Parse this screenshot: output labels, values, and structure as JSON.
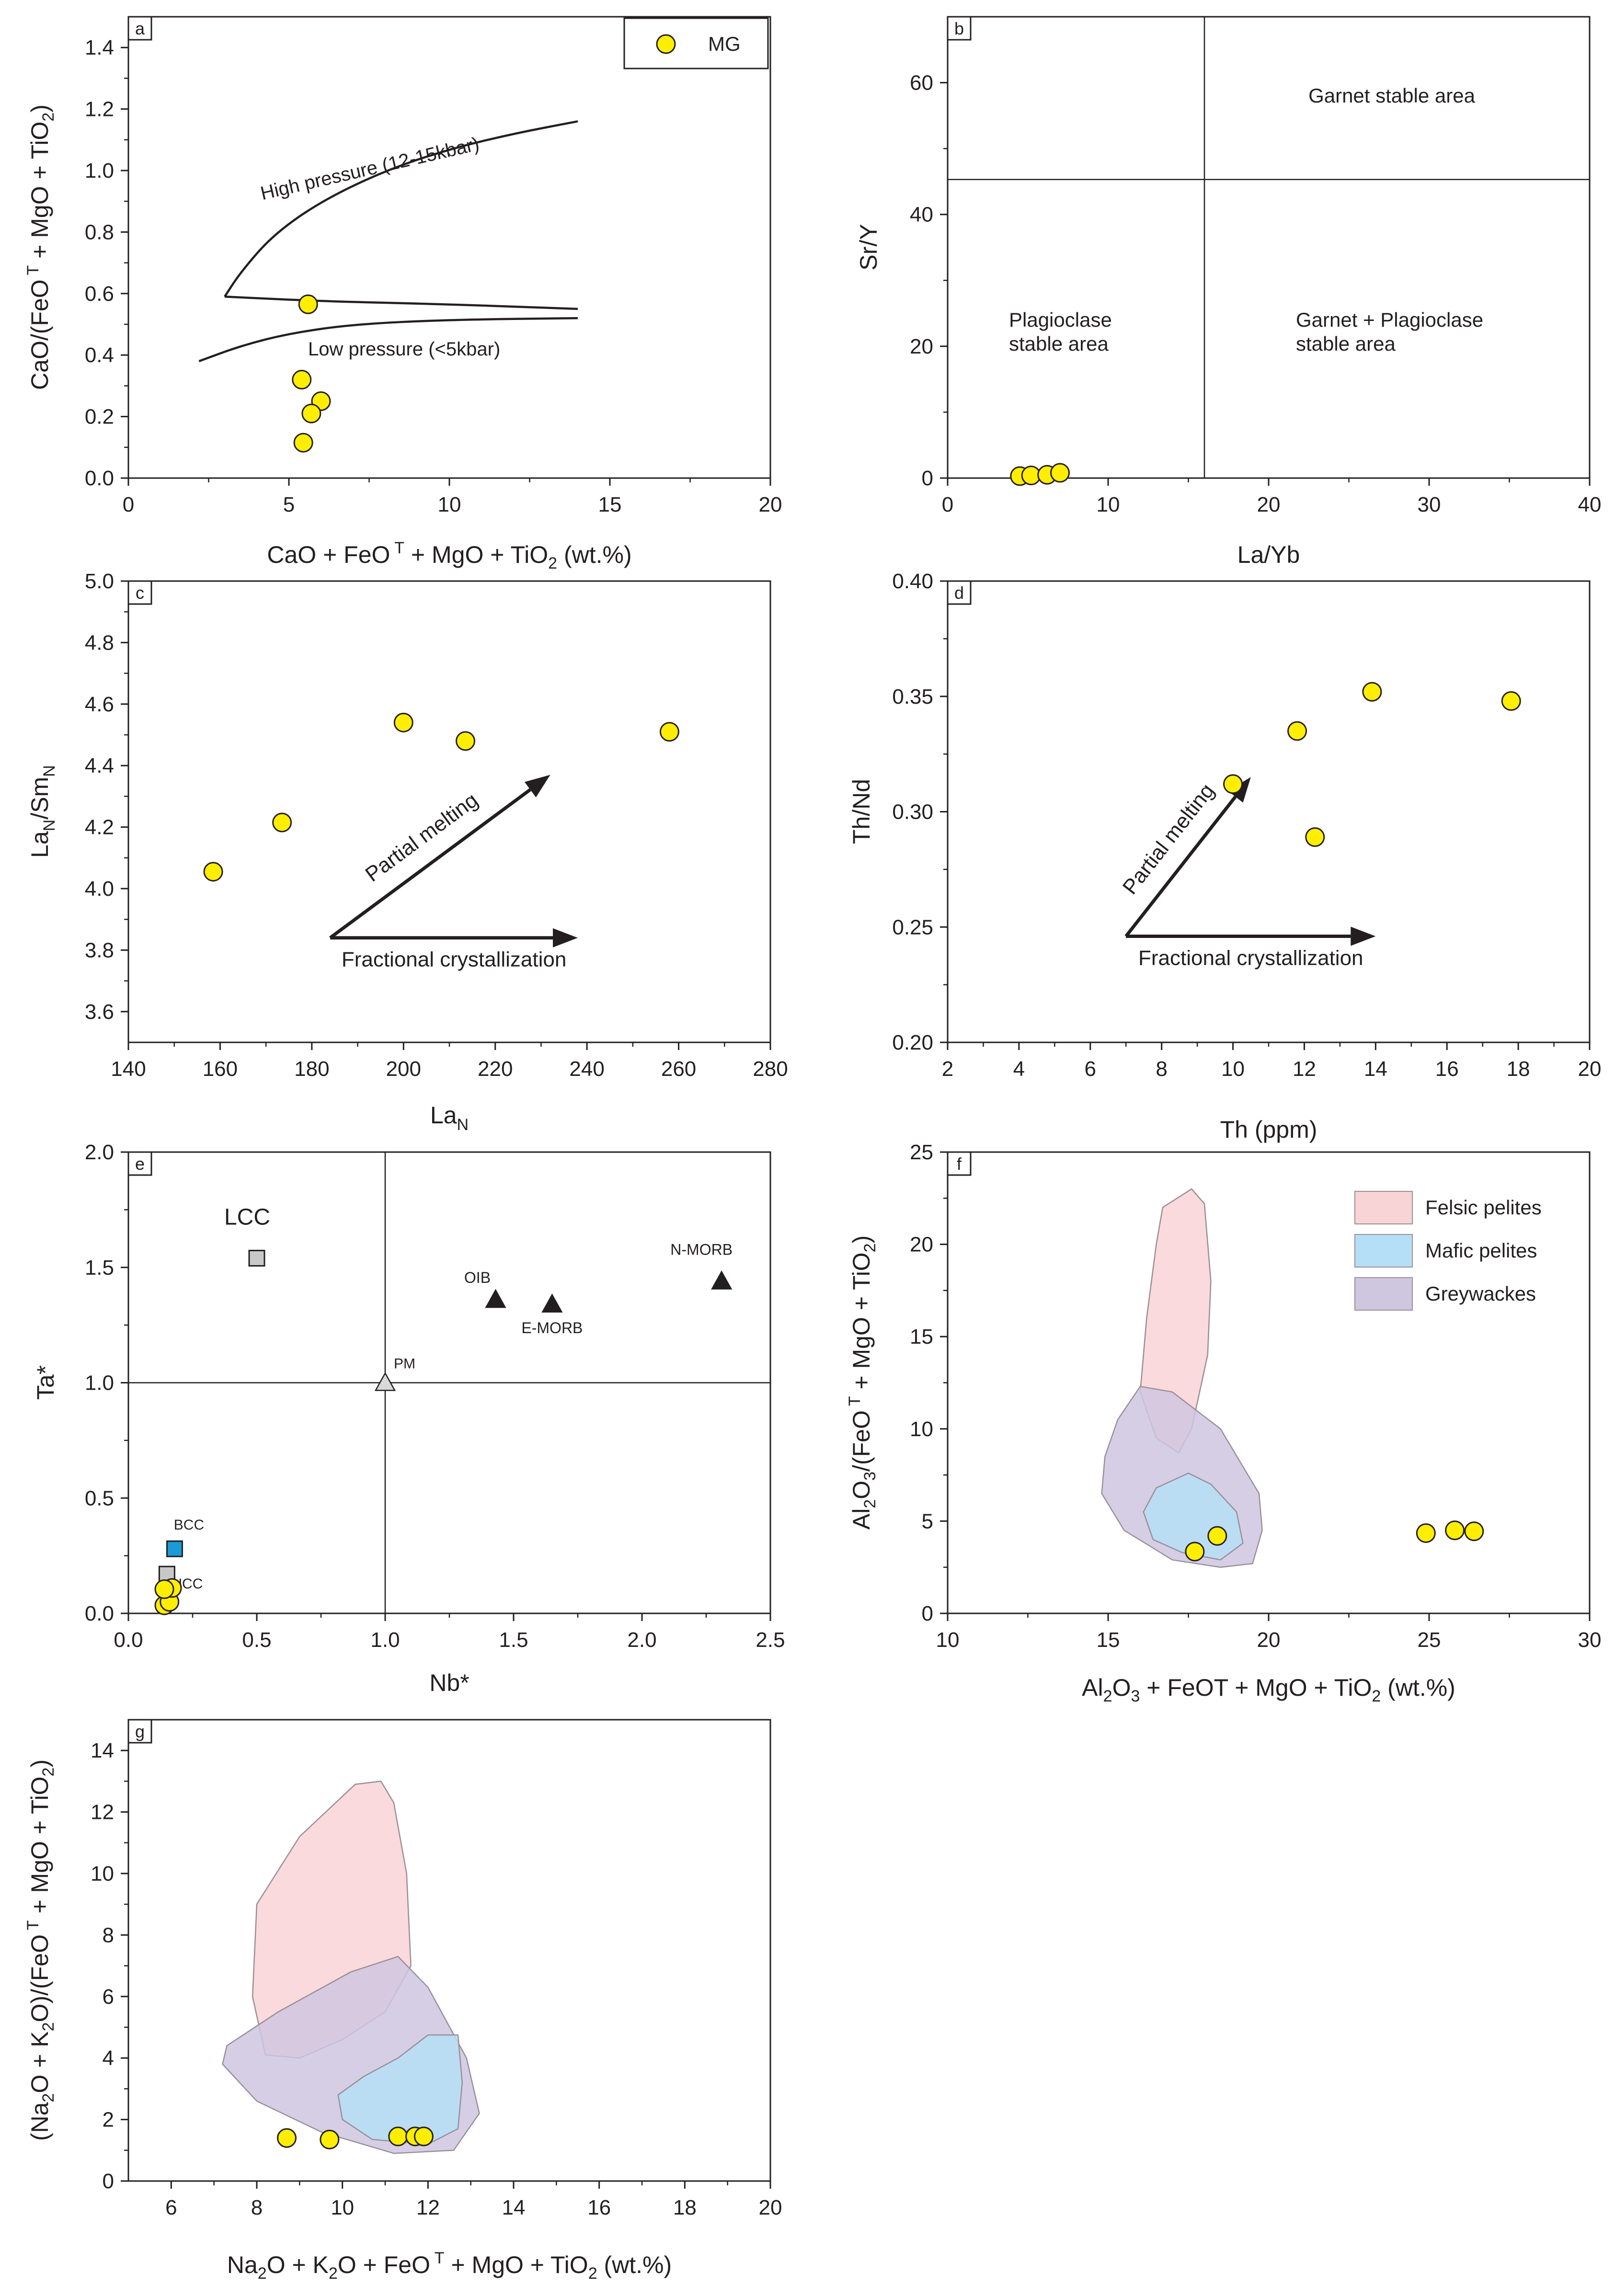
{
  "colors": {
    "sample_fill": "#ffee00",
    "felsic_fill": "#f9d4d6",
    "mafic_fill": "#b5dff6",
    "greywacke_fill": "#cfc6e0",
    "reference_dark": "#231f20",
    "bcc_fill": "#1a9ad6",
    "lcc_fill": "#c8c8c8"
  },
  "chart_data": [
    {
      "panel": "a",
      "type": "scatter",
      "xlabel": "CaO + FeO T + MgO + TiO2 (wt.%)",
      "ylabel": "CaO/(FeO T + MgO + TiO2)",
      "xlim": [
        0,
        20
      ],
      "ylim": [
        0,
        1.5
      ],
      "x_ticks": [
        0,
        5,
        10,
        15,
        20
      ],
      "y_ticks": [
        0,
        0.2,
        0.4,
        0.6,
        0.8,
        1.0,
        1.2,
        1.4
      ],
      "legend": "top-right",
      "legend_labels": [
        "MG"
      ],
      "series": [
        {
          "name": "MG",
          "points": [
            [
              5.6,
              0.565
            ],
            [
              5.4,
              0.32
            ],
            [
              6.0,
              0.25
            ],
            [
              5.7,
              0.21
            ],
            [
              5.45,
              0.115
            ]
          ]
        }
      ],
      "curves": [
        {
          "name": "high-pressure-boundary",
          "points": [
            [
              3.0,
              0.59
            ],
            [
              3.5,
              0.67
            ],
            [
              4.5,
              0.79
            ],
            [
              6,
              0.9
            ],
            [
              8,
              1.0
            ],
            [
              10,
              1.07
            ],
            [
              12,
              1.12
            ],
            [
              14,
              1.16
            ]
          ]
        },
        {
          "name": "upper-middle-boundary",
          "points": [
            [
              3.0,
              0.59
            ],
            [
              6,
              0.575
            ],
            [
              10,
              0.565
            ],
            [
              14,
              0.55
            ]
          ]
        },
        {
          "name": "low-pressure-boundary",
          "points": [
            [
              2.2,
              0.38
            ],
            [
              3.5,
              0.43
            ],
            [
              5,
              0.47
            ],
            [
              7,
              0.5
            ],
            [
              10,
              0.515
            ],
            [
              14,
              0.52
            ]
          ]
        }
      ],
      "annotations": [
        "High pressure (12-15kbar)",
        "Low  pressure (<5kbar)"
      ]
    },
    {
      "panel": "b",
      "type": "scatter",
      "xlabel": "La/Yb",
      "ylabel": "Sr/Y",
      "xlim": [
        0,
        40
      ],
      "ylim": [
        0,
        70
      ],
      "x_ticks": [
        0,
        10,
        20,
        30,
        40
      ],
      "y_ticks": [
        0,
        20,
        40,
        60
      ],
      "series": [
        {
          "name": "MG",
          "points": [
            [
              4.5,
              0.3
            ],
            [
              5.2,
              0.4
            ],
            [
              6.2,
              0.5
            ],
            [
              7.0,
              0.8
            ]
          ]
        }
      ],
      "divider_x": 16,
      "divider_y": 45.3,
      "annotations": [
        "Garnet stable area",
        "Plagioclase",
        "stable area",
        "Garnet + Plagioclase",
        "stable area"
      ]
    },
    {
      "panel": "c",
      "type": "scatter",
      "xlabel": "La",
      "xlabel_sub": "N",
      "ylabel": "La",
      "ylabel_sub1": "N",
      "ylabel_mid": "/Sm",
      "ylabel_sub2": "N",
      "xlim": [
        140,
        280
      ],
      "ylim": [
        3.5,
        5.0
      ],
      "x_ticks": [
        140,
        160,
        180,
        200,
        220,
        240,
        260,
        280
      ],
      "y_ticks": [
        3.6,
        3.8,
        4.0,
        4.2,
        4.4,
        4.6,
        4.8,
        5.0
      ],
      "series": [
        {
          "name": "MG",
          "points": [
            [
              158.5,
              4.055
            ],
            [
              173.5,
              4.215
            ],
            [
              200,
              4.54
            ],
            [
              213.5,
              4.48
            ],
            [
              258,
              4.51
            ]
          ]
        }
      ],
      "arrows": [
        {
          "label": "Partial melting",
          "from": [
            184,
            3.84
          ],
          "to": [
            232,
            4.37
          ]
        },
        {
          "label": "Fractional crystallization",
          "from": [
            184,
            3.84
          ],
          "to": [
            238,
            3.84
          ]
        }
      ]
    },
    {
      "panel": "d",
      "type": "scatter",
      "xlabel": "Th (ppm)",
      "ylabel": "Th/Nd",
      "xlim": [
        2,
        20
      ],
      "ylim": [
        0.2,
        0.4
      ],
      "x_ticks": [
        2,
        4,
        6,
        8,
        10,
        12,
        14,
        16,
        18,
        20
      ],
      "y_ticks": [
        0.2,
        0.25,
        0.3,
        0.35,
        0.4
      ],
      "series": [
        {
          "name": "MG",
          "points": [
            [
              10,
              0.312
            ],
            [
              11.8,
              0.335
            ],
            [
              12.3,
              0.289
            ],
            [
              13.9,
              0.352
            ],
            [
              17.8,
              0.348
            ]
          ]
        }
      ],
      "arrows": [
        {
          "label": "Partial melting",
          "from": [
            7,
            0.246
          ],
          "to": [
            10.5,
            0.315
          ]
        },
        {
          "label": "Fractional crystallization",
          "from": [
            7,
            0.246
          ],
          "to": [
            14,
            0.246
          ]
        }
      ]
    },
    {
      "panel": "e",
      "type": "scatter",
      "xlabel": "Nb*",
      "ylabel": "Ta*",
      "xlim": [
        0,
        2.5
      ],
      "ylim": [
        0,
        2.0
      ],
      "x_ticks": [
        0.0,
        0.5,
        1.0,
        1.5,
        2.0,
        2.5
      ],
      "y_ticks": [
        0.0,
        0.5,
        1.0,
        1.5,
        2.0
      ],
      "series": [
        {
          "name": "MG",
          "points": [
            [
              0.14,
              0.035
            ],
            [
              0.16,
              0.05
            ],
            [
              0.17,
              0.11
            ],
            [
              0.14,
              0.105
            ]
          ]
        }
      ],
      "reference": [
        {
          "name": "LCC",
          "x": 0.5,
          "y": 1.54,
          "marker": "square"
        },
        {
          "name": "BCC",
          "x": 0.18,
          "y": 0.28,
          "marker": "square"
        },
        {
          "name": "UCC",
          "x": 0.15,
          "y": 0.17,
          "marker": "square"
        },
        {
          "name": "PM",
          "x": 1.0,
          "y": 1.0,
          "marker": "triangle-open"
        },
        {
          "name": "OIB",
          "x": 1.43,
          "y": 1.36,
          "marker": "triangle"
        },
        {
          "name": "E-MORB",
          "x": 1.65,
          "y": 1.34,
          "marker": "triangle"
        },
        {
          "name": "N-MORB",
          "x": 2.31,
          "y": 1.44,
          "marker": "triangle"
        }
      ],
      "divider_x": 1.0,
      "divider_y": 1.0
    },
    {
      "panel": "f",
      "type": "scatter",
      "xlabel": "Al2O3 + FeOT + MgO + TiO2 (wt.%)",
      "ylabel": "Al2O3/(FeO T + MgO + TiO2)",
      "xlim": [
        10,
        30
      ],
      "ylim": [
        0,
        25
      ],
      "x_ticks": [
        10,
        15,
        20,
        25,
        30
      ],
      "y_ticks": [
        0,
        5,
        10,
        15,
        20,
        25
      ],
      "legend": "top-right",
      "legend_labels": [
        "Felsic pelites",
        "Mafic pelites",
        "Greywackes"
      ],
      "series": [
        {
          "name": "MG",
          "points": [
            [
              17.7,
              3.35
            ],
            [
              18.4,
              4.2
            ],
            [
              24.9,
              4.35
            ],
            [
              25.8,
              4.5
            ],
            [
              26.4,
              4.45
            ]
          ]
        }
      ],
      "fields": [
        {
          "name": "Felsic pelites",
          "polygon": [
            [
              16.7,
              22.0
            ],
            [
              17.6,
              23.0
            ],
            [
              18.0,
              22.2
            ],
            [
              18.2,
              18.0
            ],
            [
              18.1,
              14.0
            ],
            [
              17.6,
              10.0
            ],
            [
              17.2,
              8.7
            ],
            [
              16.5,
              9.5
            ],
            [
              16.0,
              12.0
            ],
            [
              16.2,
              16.0
            ],
            [
              16.5,
              20.0
            ]
          ]
        },
        {
          "name": "Greywackes",
          "polygon": [
            [
              16.0,
              12.3
            ],
            [
              17.0,
              12.0
            ],
            [
              18.5,
              10.0
            ],
            [
              19.7,
              6.5
            ],
            [
              19.8,
              4.5
            ],
            [
              19.5,
              2.7
            ],
            [
              18.5,
              2.5
            ],
            [
              17.0,
              2.9
            ],
            [
              15.5,
              4.5
            ],
            [
              14.8,
              6.5
            ],
            [
              14.9,
              8.5
            ],
            [
              15.3,
              10.5
            ]
          ]
        },
        {
          "name": "Mafic pelites",
          "polygon": [
            [
              17.5,
              7.6
            ],
            [
              18.2,
              7.0
            ],
            [
              19.0,
              5.5
            ],
            [
              19.2,
              3.8
            ],
            [
              18.5,
              2.9
            ],
            [
              17.3,
              3.3
            ],
            [
              16.4,
              4.0
            ],
            [
              16.1,
              5.5
            ],
            [
              16.5,
              6.8
            ]
          ]
        }
      ]
    },
    {
      "panel": "g",
      "type": "scatter",
      "xlabel": "Na2O + K2O + FeO T + MgO + TiO2 (wt.%)",
      "ylabel": "(Na2O + K2O)/(FeO T + MgO + TiO2)",
      "xlim": [
        5,
        20
      ],
      "ylim": [
        0,
        15
      ],
      "x_ticks": [
        6,
        8,
        10,
        12,
        14,
        16,
        18,
        20
      ],
      "y_ticks": [
        0,
        2,
        4,
        6,
        8,
        10,
        12,
        14
      ],
      "series": [
        {
          "name": "MG",
          "points": [
            [
              8.7,
              1.4
            ],
            [
              9.7,
              1.35
            ],
            [
              11.3,
              1.45
            ],
            [
              11.7,
              1.45
            ],
            [
              11.9,
              1.45
            ]
          ]
        }
      ],
      "fields": [
        {
          "name": "Felsic pelites",
          "polygon": [
            [
              8.0,
              9.0
            ],
            [
              9.0,
              11.2
            ],
            [
              10.3,
              12.9
            ],
            [
              10.9,
              13.0
            ],
            [
              11.2,
              12.3
            ],
            [
              11.5,
              10.0
            ],
            [
              11.6,
              7.0
            ],
            [
              11.0,
              5.5
            ],
            [
              10.0,
              4.6
            ],
            [
              9.0,
              4.0
            ],
            [
              8.2,
              4.1
            ],
            [
              7.9,
              6.0
            ]
          ]
        },
        {
          "name": "Greywackes",
          "polygon": [
            [
              7.3,
              4.4
            ],
            [
              8.5,
              5.5
            ],
            [
              10.2,
              6.8
            ],
            [
              11.3,
              7.3
            ],
            [
              12.0,
              6.3
            ],
            [
              12.9,
              4.0
            ],
            [
              13.2,
              2.2
            ],
            [
              12.6,
              1.0
            ],
            [
              11.2,
              0.9
            ],
            [
              9.5,
              1.6
            ],
            [
              8.0,
              2.6
            ],
            [
              7.2,
              3.8
            ]
          ]
        },
        {
          "name": "Mafic pelites",
          "polygon": [
            [
              10.5,
              3.4
            ],
            [
              11.3,
              4.0
            ],
            [
              12.0,
              4.75
            ],
            [
              12.7,
              4.75
            ],
            [
              12.8,
              3.2
            ],
            [
              12.7,
              1.7
            ],
            [
              12.0,
              1.2
            ],
            [
              10.7,
              1.35
            ],
            [
              10.0,
              2.0
            ],
            [
              9.9,
              2.8
            ]
          ]
        }
      ]
    }
  ]
}
